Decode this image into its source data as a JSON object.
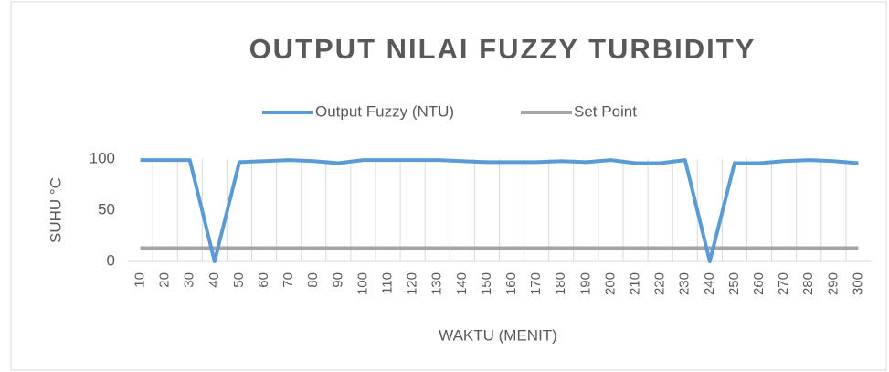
{
  "chart_data": {
    "type": "line",
    "title": "OUTPUT NILAI FUZZY TURBIDITY",
    "y_label": "SUHU °C",
    "x_label": "WAKTU (MENIT)",
    "categories": [
      "10",
      "20",
      "30",
      "40",
      "50",
      "60",
      "70",
      "80",
      "90",
      "100",
      "110",
      "120",
      "130",
      "140",
      "150",
      "160",
      "170",
      "180",
      "190",
      "200",
      "210",
      "220",
      "230",
      "240",
      "250",
      "260",
      "270",
      "280",
      "290",
      "300"
    ],
    "series": [
      {
        "name": "Output Fuzzy (NTU)",
        "color": "#5b9bd5",
        "values": [
          99,
          99,
          99,
          0,
          97,
          98,
          99,
          98,
          96,
          99,
          99,
          99,
          99,
          98,
          97,
          97,
          97,
          98,
          97,
          99,
          96,
          96,
          99,
          0,
          96,
          96,
          98,
          99,
          98,
          96
        ]
      },
      {
        "name": "Set Point",
        "color": "#a5a5a5",
        "values": [
          13,
          13,
          13,
          13,
          13,
          13,
          13,
          13,
          13,
          13,
          13,
          13,
          13,
          13,
          13,
          13,
          13,
          13,
          13,
          13,
          13,
          13,
          13,
          13,
          13,
          13,
          13,
          13,
          13,
          13
        ]
      }
    ],
    "ylim": [
      0,
      100
    ],
    "yticks": [
      0,
      50,
      100
    ],
    "grid": false,
    "legend": "top"
  }
}
